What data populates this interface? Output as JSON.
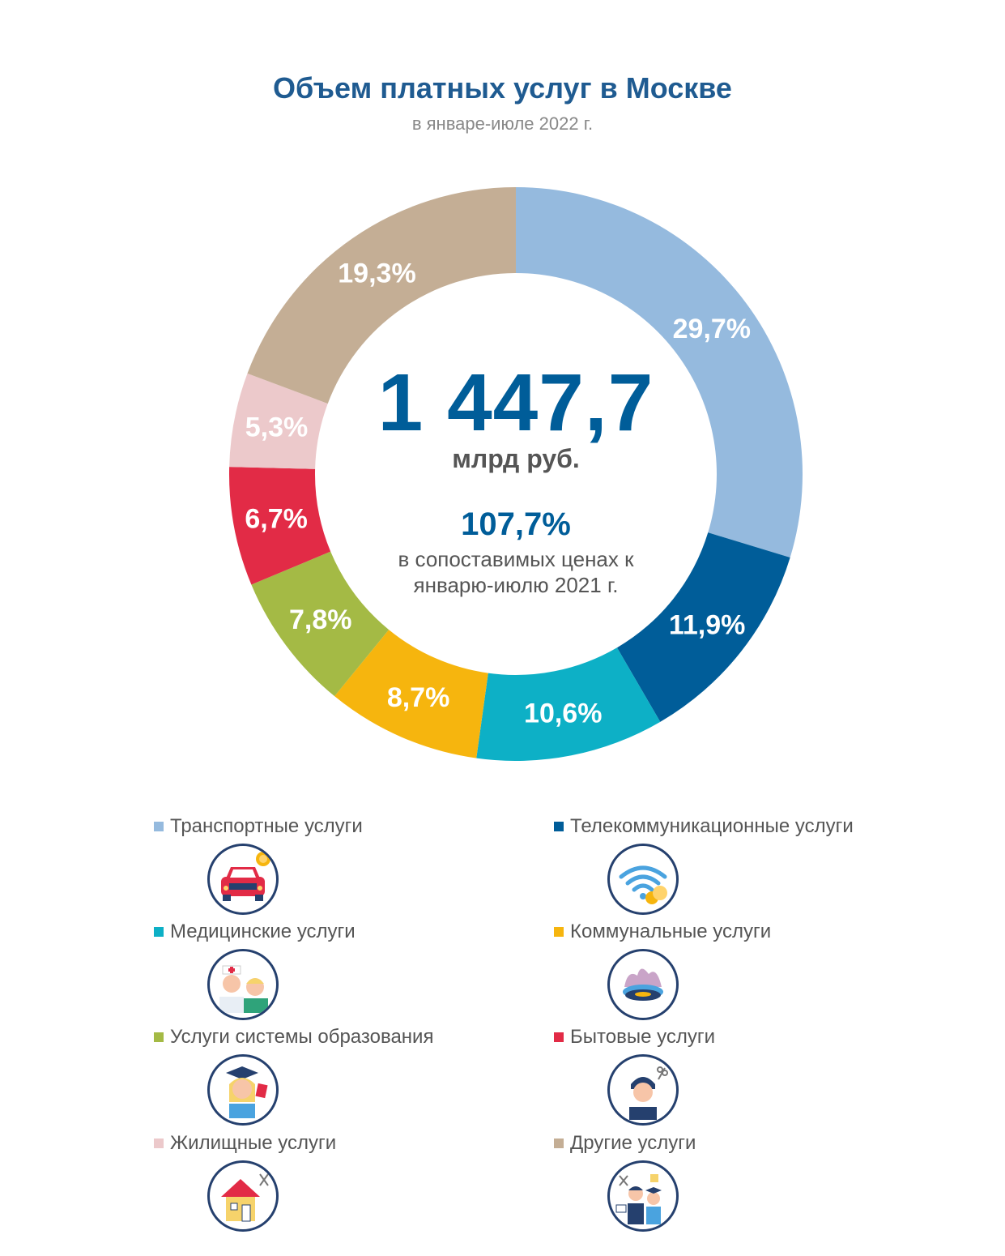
{
  "title": "Объем платных услуг в Москве",
  "subtitle": "в январе-июле 2022 г.",
  "center": {
    "total": "1 447,7",
    "unit": "млрд руб.",
    "growth": "107,7%",
    "growth_note_line1": "в сопоставимых ценах к",
    "growth_note_line2": "январю-июлю 2021 г."
  },
  "chart_data": {
    "type": "pie",
    "title": "Объем платных услуг в Москве",
    "subtitle": "в январе-июле 2022 г.",
    "unit": "%",
    "categories": [
      "Транспортные услуги",
      "Телекоммуникационные услуги",
      "Медицинские услуги",
      "Коммунальные услуги",
      "Услуги системы образования",
      "Бытовые услуги",
      "Жилищные услуги",
      "Другие услуги"
    ],
    "values": [
      29.7,
      11.9,
      10.6,
      8.7,
      7.8,
      6.7,
      5.3,
      19.3
    ],
    "labels": [
      "29,7%",
      "11,9%",
      "10,6%",
      "8,7%",
      "7,8%",
      "6,7%",
      "5,3%",
      "19,3%"
    ],
    "colors": [
      "#95bade",
      "#005d99",
      "#0db0c6",
      "#f6b50e",
      "#a4ba45",
      "#e22b46",
      "#ecc9cb",
      "#c4ae95"
    ],
    "legend_position": "bottom"
  },
  "legend": {
    "items": [
      {
        "label": "Транспортные услуги",
        "color": "#95bade",
        "icon": "car-coin-icon"
      },
      {
        "label": "Телекоммуникационные услуги",
        "color": "#005d99",
        "icon": "wifi-coins-icon"
      },
      {
        "label": "Медицинские услуги",
        "color": "#0db0c6",
        "icon": "doctor-patient-icon"
      },
      {
        "label": "Коммунальные услуги",
        "color": "#f6b50e",
        "icon": "gas-burner-icon"
      },
      {
        "label": "Услуги системы образования",
        "color": "#a4ba45",
        "icon": "graduate-icon"
      },
      {
        "label": "Бытовые услуги",
        "color": "#e22b46",
        "icon": "barber-icon"
      },
      {
        "label": "Жилищные услуги",
        "color": "#ecc9cb",
        "icon": "house-tools-icon"
      },
      {
        "label": "Другие услуги",
        "color": "#c4ae95",
        "icon": "people-services-icon"
      }
    ]
  }
}
